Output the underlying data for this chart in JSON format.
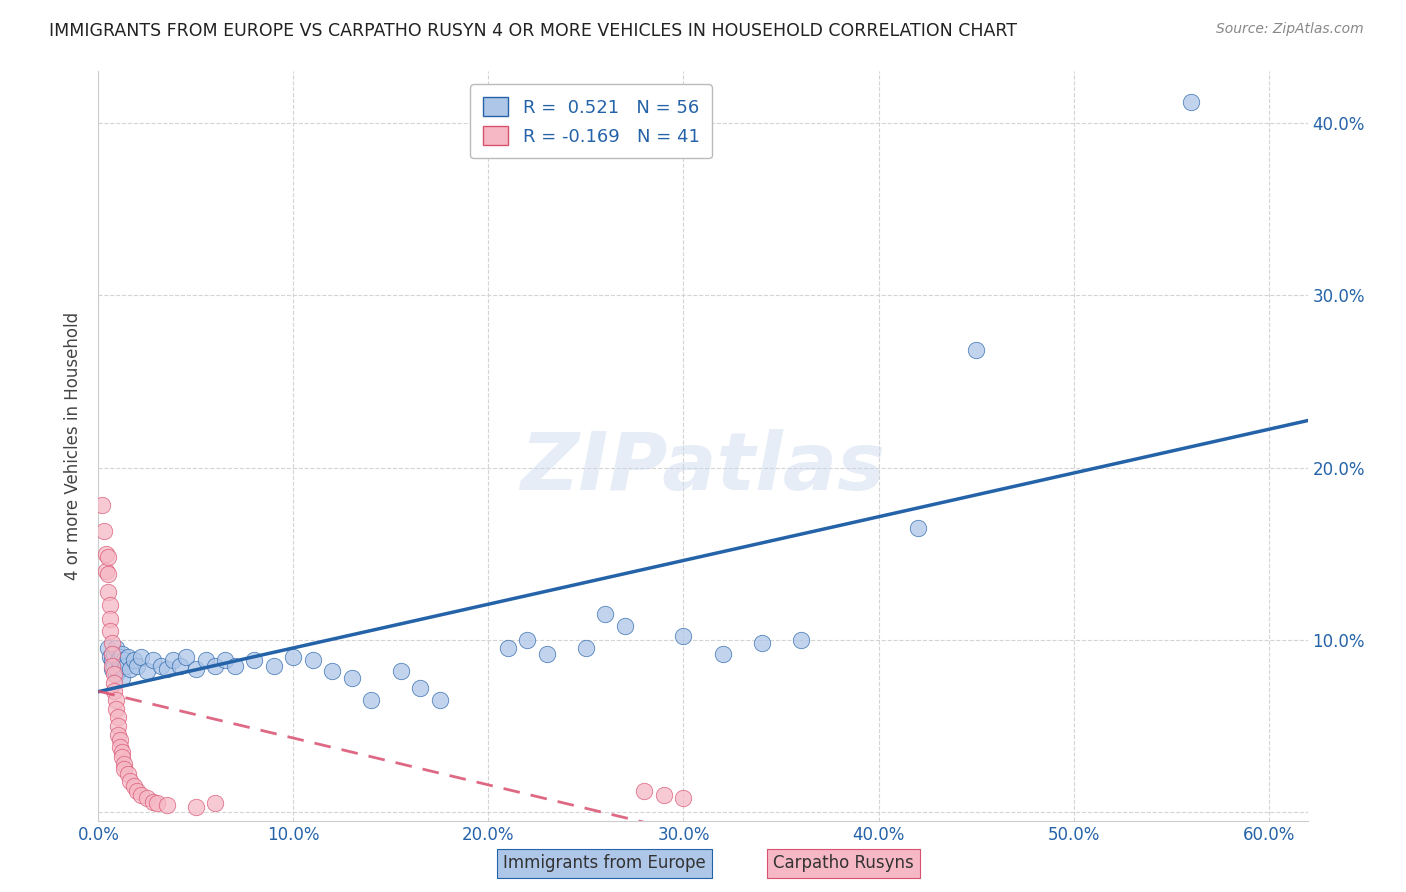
{
  "title": "IMMIGRANTS FROM EUROPE VS CARPATHO RUSYN 4 OR MORE VEHICLES IN HOUSEHOLD CORRELATION CHART",
  "source": "Source: ZipAtlas.com",
  "xlabel_blue": "Immigrants from Europe",
  "xlabel_pink": "Carpatho Rusyns",
  "ylabel": "4 or more Vehicles in Household",
  "xlim": [
    0.0,
    0.62
  ],
  "ylim": [
    -0.005,
    0.43
  ],
  "xticks": [
    0.0,
    0.1,
    0.2,
    0.3,
    0.4,
    0.5,
    0.6
  ],
  "yticks_right": [
    0.1,
    0.2,
    0.3,
    0.4
  ],
  "blue_R": 0.521,
  "blue_N": 56,
  "pink_R": -0.169,
  "pink_N": 41,
  "blue_color": "#aec6e8",
  "pink_color": "#f5b8c4",
  "blue_line_color": "#2563a8",
  "pink_line_color": "#d94f6e",
  "blue_scatter": [
    [
      0.005,
      0.095
    ],
    [
      0.006,
      0.09
    ],
    [
      0.007,
      0.088
    ],
    [
      0.007,
      0.083
    ],
    [
      0.008,
      0.092
    ],
    [
      0.008,
      0.085
    ],
    [
      0.009,
      0.095
    ],
    [
      0.009,
      0.08
    ],
    [
      0.01,
      0.088
    ],
    [
      0.01,
      0.082
    ],
    [
      0.011,
      0.09
    ],
    [
      0.011,
      0.085
    ],
    [
      0.012,
      0.092
    ],
    [
      0.012,
      0.078
    ],
    [
      0.013,
      0.088
    ],
    [
      0.014,
      0.085
    ],
    [
      0.015,
      0.09
    ],
    [
      0.016,
      0.083
    ],
    [
      0.018,
      0.088
    ],
    [
      0.02,
      0.085
    ],
    [
      0.022,
      0.09
    ],
    [
      0.025,
      0.082
    ],
    [
      0.028,
      0.088
    ],
    [
      0.032,
      0.085
    ],
    [
      0.035,
      0.083
    ],
    [
      0.038,
      0.088
    ],
    [
      0.042,
      0.085
    ],
    [
      0.045,
      0.09
    ],
    [
      0.05,
      0.083
    ],
    [
      0.055,
      0.088
    ],
    [
      0.06,
      0.085
    ],
    [
      0.065,
      0.088
    ],
    [
      0.07,
      0.085
    ],
    [
      0.08,
      0.088
    ],
    [
      0.09,
      0.085
    ],
    [
      0.1,
      0.09
    ],
    [
      0.11,
      0.088
    ],
    [
      0.12,
      0.082
    ],
    [
      0.13,
      0.078
    ],
    [
      0.14,
      0.065
    ],
    [
      0.155,
      0.082
    ],
    [
      0.165,
      0.072
    ],
    [
      0.175,
      0.065
    ],
    [
      0.21,
      0.095
    ],
    [
      0.22,
      0.1
    ],
    [
      0.23,
      0.092
    ],
    [
      0.25,
      0.095
    ],
    [
      0.26,
      0.115
    ],
    [
      0.27,
      0.108
    ],
    [
      0.3,
      0.102
    ],
    [
      0.32,
      0.092
    ],
    [
      0.34,
      0.098
    ],
    [
      0.36,
      0.1
    ],
    [
      0.42,
      0.165
    ],
    [
      0.45,
      0.268
    ],
    [
      0.56,
      0.412
    ]
  ],
  "pink_scatter": [
    [
      0.002,
      0.178
    ],
    [
      0.003,
      0.163
    ],
    [
      0.004,
      0.15
    ],
    [
      0.004,
      0.14
    ],
    [
      0.005,
      0.148
    ],
    [
      0.005,
      0.138
    ],
    [
      0.005,
      0.128
    ],
    [
      0.006,
      0.12
    ],
    [
      0.006,
      0.112
    ],
    [
      0.006,
      0.105
    ],
    [
      0.007,
      0.098
    ],
    [
      0.007,
      0.092
    ],
    [
      0.007,
      0.085
    ],
    [
      0.008,
      0.08
    ],
    [
      0.008,
      0.075
    ],
    [
      0.008,
      0.07
    ],
    [
      0.009,
      0.065
    ],
    [
      0.009,
      0.06
    ],
    [
      0.01,
      0.055
    ],
    [
      0.01,
      0.05
    ],
    [
      0.01,
      0.045
    ],
    [
      0.011,
      0.042
    ],
    [
      0.011,
      0.038
    ],
    [
      0.012,
      0.035
    ],
    [
      0.012,
      0.032
    ],
    [
      0.013,
      0.028
    ],
    [
      0.013,
      0.025
    ],
    [
      0.015,
      0.022
    ],
    [
      0.016,
      0.018
    ],
    [
      0.018,
      0.015
    ],
    [
      0.02,
      0.012
    ],
    [
      0.022,
      0.01
    ],
    [
      0.025,
      0.008
    ],
    [
      0.028,
      0.006
    ],
    [
      0.03,
      0.005
    ],
    [
      0.035,
      0.004
    ],
    [
      0.05,
      0.003
    ],
    [
      0.06,
      0.005
    ],
    [
      0.28,
      0.012
    ],
    [
      0.29,
      0.01
    ],
    [
      0.3,
      0.008
    ]
  ],
  "watermark": "ZIPatlas",
  "background_color": "#ffffff",
  "grid_color": "#d0d0d0"
}
